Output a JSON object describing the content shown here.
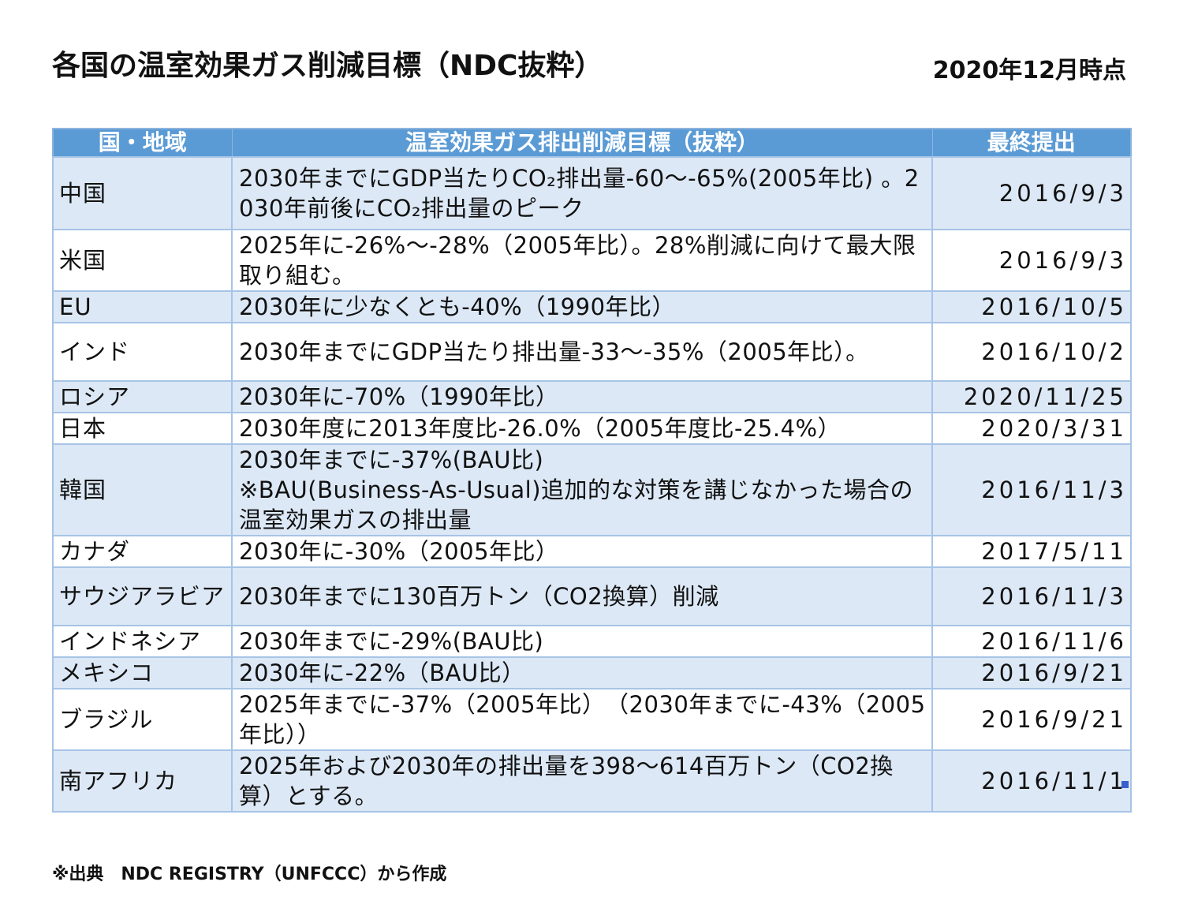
{
  "title": "各国の温室効果ガス削減目標（NDC抜粋）",
  "as_of": "2020年12月時点",
  "table": {
    "headers": [
      "国・地域",
      "温室効果ガス排出削減目標（抜粋）",
      "最終提出"
    ],
    "rows": [
      {
        "country": "中国",
        "target": "2030年までにGDP当たりCO₂排出量-60～-65%(2005年比) 。2030年前後にCO₂排出量のピーク",
        "date": "2016/9/3"
      },
      {
        "country": "米国",
        "target": "2025年に-26%～-28%（2005年比）。28%削減に向けて最大限取り組む。",
        "date": "2016/9/3"
      },
      {
        "country": "EU",
        "target": "2030年に少なくとも-40%（1990年比）",
        "date": "2016/10/5"
      },
      {
        "country": "インド",
        "target": "2030年までにGDP当たり排出量-33～-35%（2005年比）。",
        "date": "2016/10/2"
      },
      {
        "country": "ロシア",
        "target": "2030年に-70%（1990年比）",
        "date": "2020/11/25"
      },
      {
        "country": "日本",
        "target": "2030年度に2013年度比-26.0%（2005年度比-25.4%）",
        "date": "2020/3/31"
      },
      {
        "country": "韓国",
        "target": "2030年までに-37%(BAU比)",
        "target_note": "※BAU(Business-As-Usual)追加的な対策を講じなかった場合の温室効果ガスの排出量",
        "date": "2016/11/3"
      },
      {
        "country": "カナダ",
        "target": "2030年に-30%（2005年比）",
        "date": "2017/5/11"
      },
      {
        "country": "サウジアラビア",
        "target": "2030年までに130百万トン（CO2換算）削減",
        "date": "2016/11/3"
      },
      {
        "country": "インドネシア",
        "target": "2030年までに-29%(BAU比)",
        "date": "2016/11/6"
      },
      {
        "country": "メキシコ",
        "target": "2030年に-22%（BAU比）",
        "date": "2016/9/21"
      },
      {
        "country": "ブラジル",
        "target": "2025年までに-37%（2005年比）　（2030年までに-43%（2005年比））",
        "date": "2016/9/21"
      },
      {
        "country": "南アフリカ",
        "target": "2025年および2030年の排出量を398～614百万トン（CO2換算）とする。",
        "date": "2016/11/1"
      }
    ]
  },
  "source": "※出典　NDC REGISTRY（UNFCCC）から作成"
}
